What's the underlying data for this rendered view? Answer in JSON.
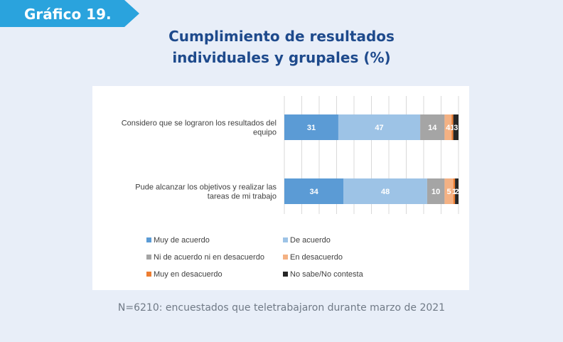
{
  "header": {
    "tag": "Gráfico 19.",
    "title_line1": "Cumplimiento de resultados",
    "title_line2": "individuales y grupales (%)"
  },
  "footer": {
    "note": "N=6210: encuestados que teletrabajaron durante marzo de 2021"
  },
  "chart_data": {
    "type": "bar",
    "orientation": "horizontal",
    "stacked": true,
    "categories": [
      [
        "Considero que se lograron los resultados del",
        "equipo"
      ],
      [
        "Pude alcanzar los objetivos y realizar las",
        "tareas de mi trabajo"
      ]
    ],
    "series": [
      {
        "name": "Muy de acuerdo",
        "color": "#5b9bd5",
        "values": [
          31,
          34
        ],
        "labels": [
          "31",
          "34"
        ]
      },
      {
        "name": "De acuerdo",
        "color": "#9dc3e6",
        "values": [
          47,
          48
        ],
        "labels": [
          "47",
          "48"
        ]
      },
      {
        "name": "Ni de acuerdo ni en desacuerdo",
        "color": "#a5a5a5",
        "values": [
          14,
          10
        ],
        "labels": [
          "14",
          "10"
        ]
      },
      {
        "name": "En desacuerdo",
        "color": "#f4b183",
        "values": [
          4,
          5
        ],
        "labels": [
          "4",
          "5"
        ]
      },
      {
        "name": "Muy en desacuerdo",
        "color": "#ed7d31",
        "values": [
          1,
          1
        ],
        "labels": [
          "1",
          "1"
        ]
      },
      {
        "name": "No sabe/No contesta",
        "color": "#262626",
        "values": [
          3,
          2
        ],
        "labels": [
          "3",
          "2"
        ]
      }
    ],
    "xlim": [
      0,
      100
    ],
    "grid": true,
    "legend_position": "bottom"
  }
}
